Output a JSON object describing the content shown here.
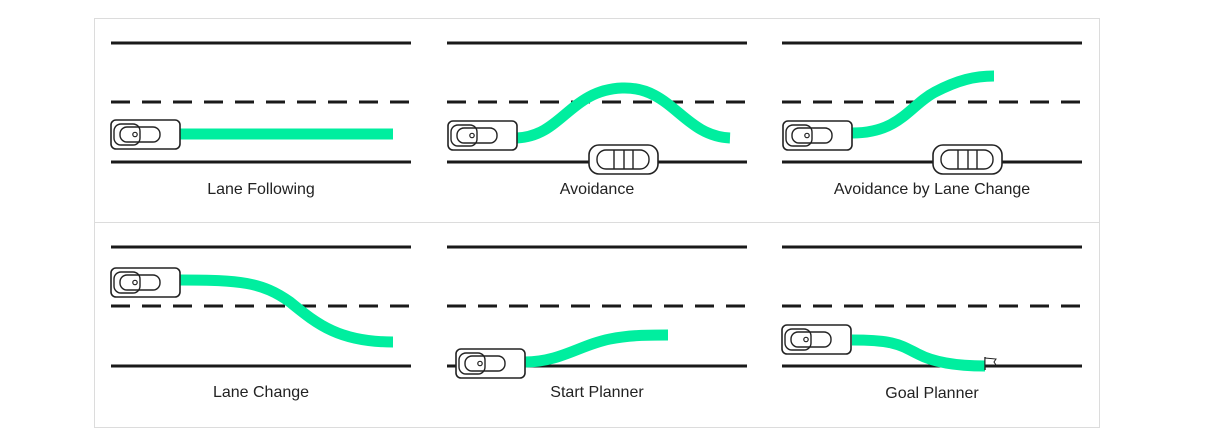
{
  "panels": [
    {
      "label": "Lane Following"
    },
    {
      "label": "Avoidance"
    },
    {
      "label": "Avoidance by Lane Change"
    },
    {
      "label": "Lane Change"
    },
    {
      "label": "Start Planner"
    },
    {
      "label": "Goal Planner"
    }
  ],
  "colors": {
    "path": "#00ee9f",
    "road": "#1a1a1a",
    "border": "#dcdcdc",
    "text": "#222222"
  },
  "icons": {
    "ego_vehicle": "car-top-view-icon",
    "obstacle_vehicle": "car-top-view-icon",
    "goal": "goal-flag-icon"
  }
}
